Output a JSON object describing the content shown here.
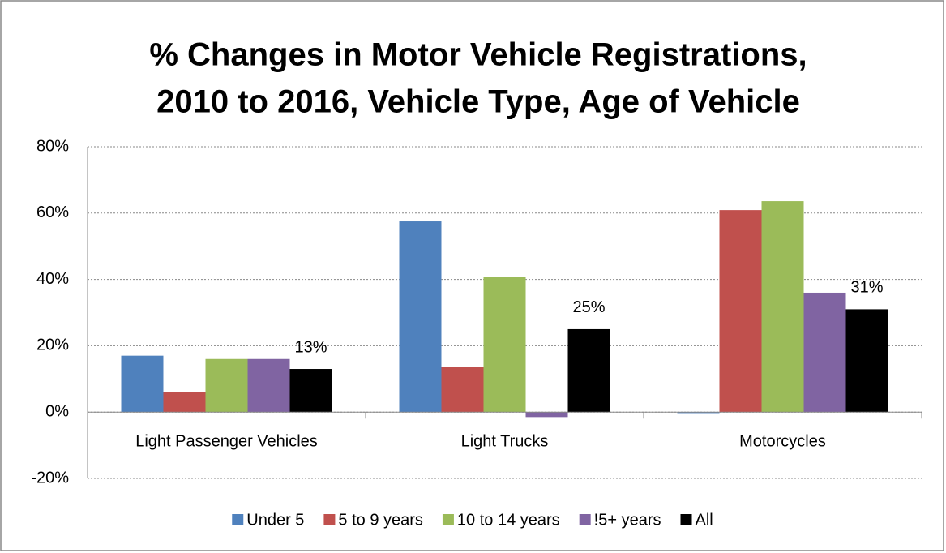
{
  "chart_data": {
    "type": "bar",
    "title": [
      "% Changes in Motor Vehicle Registrations,",
      "2010 to 2016, Vehicle Type, Age of Vehicle"
    ],
    "categories": [
      "Light Passenger Vehicles",
      "Light Trucks",
      "Motorcycles"
    ],
    "series": [
      {
        "name": "Under 5",
        "color": "#4f81bd",
        "values": [
          17,
          57.5,
          -0.3
        ]
      },
      {
        "name": "5 to 9 years",
        "color": "#c0504d",
        "values": [
          6,
          13.7,
          60.9
        ]
      },
      {
        "name": "10 to 14 years",
        "color": "#9bbb59",
        "values": [
          16,
          40.8,
          63.6
        ]
      },
      {
        "name": "!5+ years",
        "color": "#8064a2",
        "values": [
          16,
          -1.5,
          36
        ]
      },
      {
        "name": "All",
        "color": "#000000",
        "values": [
          13,
          25,
          31
        ],
        "value_labels": [
          "13%",
          "25%",
          "31%"
        ]
      }
    ],
    "ylim": [
      -20,
      80
    ],
    "yticks": [
      {
        "value": -20,
        "label": "-20%"
      },
      {
        "value": 0,
        "label": "0%"
      },
      {
        "value": 20,
        "label": "20%"
      },
      {
        "value": 40,
        "label": "40%"
      },
      {
        "value": 60,
        "label": "60%"
      },
      {
        "value": 80,
        "label": "80%"
      }
    ],
    "grid": true,
    "legend": "bottom"
  }
}
